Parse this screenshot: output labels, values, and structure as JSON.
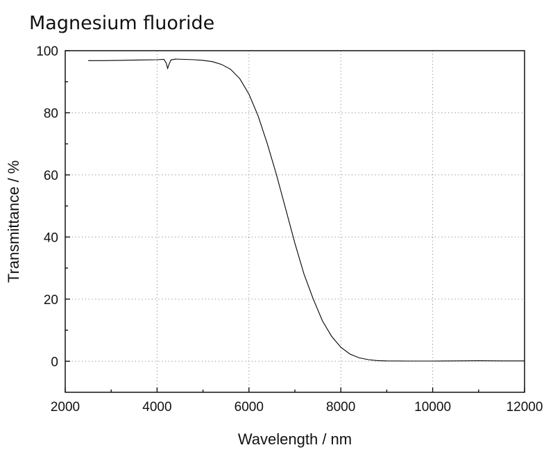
{
  "chart_data": {
    "type": "line",
    "title": "Magnesium fluoride",
    "xlabel": "Wavelength / nm",
    "ylabel": "Transmittance / %",
    "xlim": [
      2000,
      12000
    ],
    "ylim": [
      -10,
      100
    ],
    "xticks": [
      {
        "value": 2000,
        "label": "2000"
      },
      {
        "value": 4000,
        "label": "4000"
      },
      {
        "value": 6000,
        "label": "6000"
      },
      {
        "value": 8000,
        "label": "8000"
      },
      {
        "value": 10000,
        "label": "10000"
      },
      {
        "value": 12000,
        "label": "12000"
      }
    ],
    "yticks": [
      {
        "value": 0,
        "label": "0"
      },
      {
        "value": 20,
        "label": "20"
      },
      {
        "value": 40,
        "label": "40"
      },
      {
        "value": 60,
        "label": "60"
      },
      {
        "value": 80,
        "label": "80"
      },
      {
        "value": 100,
        "label": "100"
      }
    ],
    "grid": true,
    "series": [
      {
        "color": "#000000",
        "x": [
          2500,
          2800,
          3200,
          3600,
          4000,
          4150,
          4200,
          4230,
          4260,
          4300,
          4400,
          4600,
          4800,
          5000,
          5200,
          5400,
          5600,
          5800,
          6000,
          6200,
          6400,
          6600,
          6800,
          7000,
          7200,
          7400,
          7600,
          7800,
          8000,
          8200,
          8400,
          8600,
          8800,
          9000,
          9500,
          10000,
          10500,
          11000,
          11500,
          12000
        ],
        "y": [
          96.8,
          96.8,
          96.9,
          97.0,
          97.1,
          97.2,
          96.0,
          94.3,
          95.6,
          97.0,
          97.3,
          97.2,
          97.1,
          96.9,
          96.5,
          95.6,
          94.0,
          91.0,
          86.0,
          79.0,
          70.0,
          60.0,
          49.0,
          38.0,
          28.0,
          20.0,
          13.0,
          8.0,
          4.5,
          2.3,
          1.1,
          0.5,
          0.2,
          0.1,
          0.05,
          0.05,
          0.1,
          0.15,
          0.1,
          0.1
        ]
      }
    ]
  }
}
